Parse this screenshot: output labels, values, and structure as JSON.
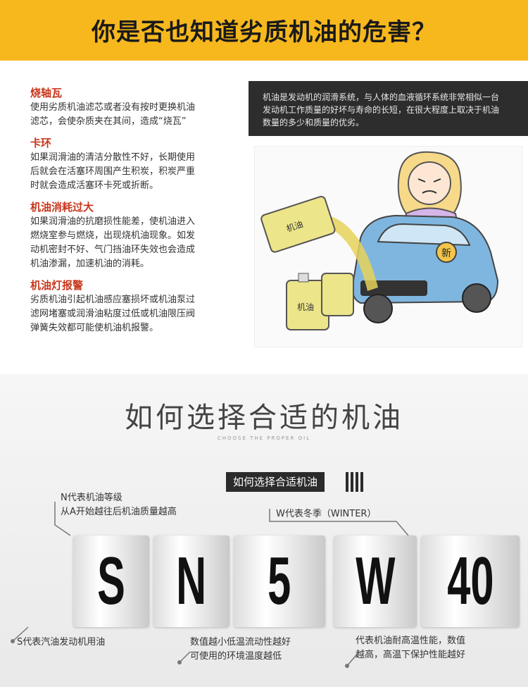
{
  "header": {
    "title": "你是否也知道劣质机油的危害？"
  },
  "hazards": [
    {
      "title": "烧轴瓦",
      "lines": [
        "使用劣质机油滤芯或者没有按时更换机油",
        "滤芯，会使杂质夹在其间，造成“烧瓦”"
      ]
    },
    {
      "title": "卡环",
      "lines": [
        "如果润滑油的清洁分散性不好，长期使用",
        "后就会在活塞环周围产生积炭，积炭严重",
        "时就会造成活塞环卡死或折断。"
      ]
    },
    {
      "title": "机油消耗过大",
      "lines": [
        "如果润滑油的抗磨损性能差，使机油进入",
        "燃烧室参与燃烧，出现烧机油现象。如发",
        "动机密封不好、气门挡油环失效也会造成",
        "机油渗漏，加速机油的消耗。"
      ]
    },
    {
      "title": "机油灯报警",
      "lines": [
        "劣质机油引起机油感应塞损坏或机油泵过",
        "滤网堵塞或润滑油粘度过低或机油限压阀",
        "弹簧失效都可能使机油机报警。"
      ]
    }
  ],
  "info_box": {
    "lines": [
      "机油是发动机的润滑系统，与人体的血液循环系统非常相似一台",
      "发动机工作质量的好坏与寿命的长短，在很大程度上取决于机油",
      "数量的多少和质量的优劣。"
    ]
  },
  "illustration": {
    "bottle_label": "机油",
    "car_tag": "新"
  },
  "choose": {
    "title": "如何选择合适的机油",
    "subtitle": "CHOOSE THE PROPER OIL",
    "pill": "如何选择合适机油"
  },
  "grade": {
    "chars": [
      "S",
      "N",
      "5",
      "W",
      "40"
    ]
  },
  "annotations": {
    "n_line1": "N代表机油等级",
    "n_line2": "从A开始越往后机油质量越高",
    "w_label": "W代表冬季（WINTER）",
    "s_label": "S代表汽油发动机用油",
    "num_line1": "数值越小低温流动性越好",
    "num_line2": "可使用的环境温度越低",
    "hi_line1": "代表机油耐高温性能，数值",
    "hi_line2": "越高，高温下保护性能越好"
  }
}
